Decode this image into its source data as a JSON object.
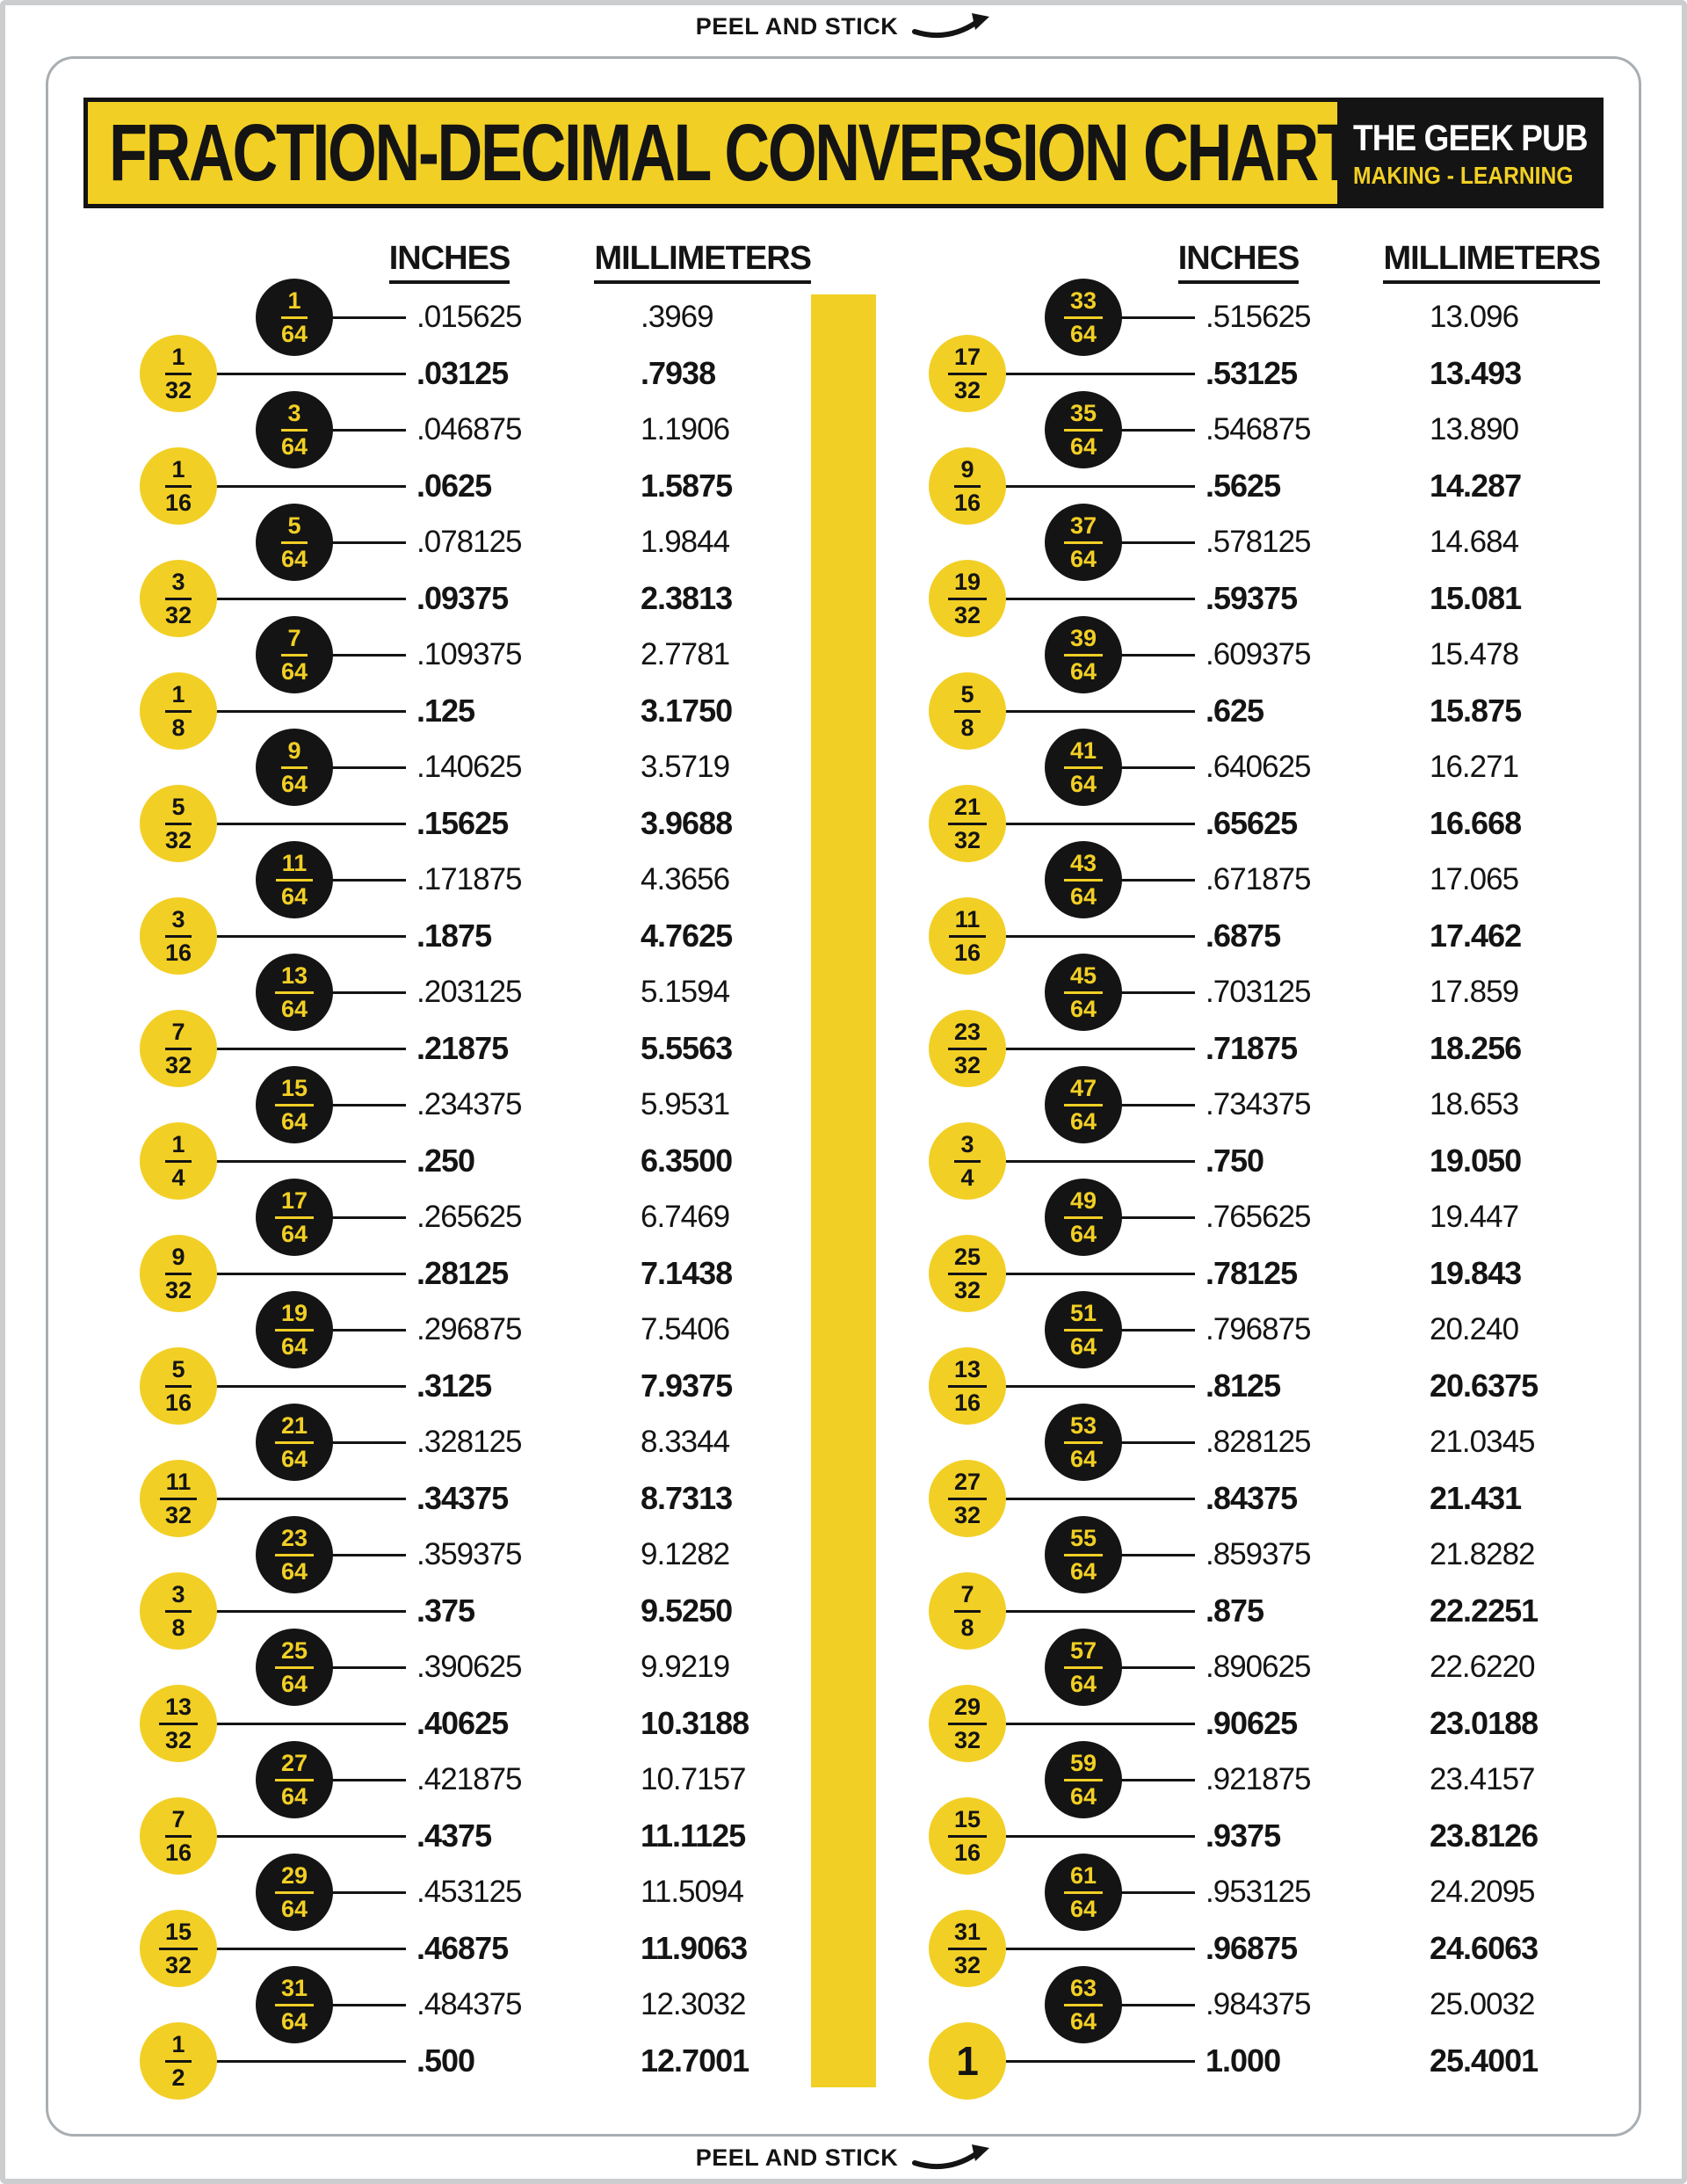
{
  "page": {
    "peel_top": "PEEL AND STICK",
    "peel_bottom": "PEEL AND STICK"
  },
  "icons": {
    "peel_arrow": "curved-arrow-up-right"
  },
  "colors": {
    "yellow": "#F2CF24",
    "black": "#141414",
    "white": "#FFFFFF"
  },
  "header": {
    "title": "FRACTION-DECIMAL CONVERSION CHART",
    "brand": "THE GEEK PUB",
    "brand_sub": "MAKING - LEARNING"
  },
  "columns": [
    {
      "inches_header": "INCHES",
      "mm_header": "MILLIMETERS",
      "rows": [
        {
          "style": "b",
          "num": "1",
          "den": "64",
          "inches": ".015625",
          "mm": ".3969"
        },
        {
          "style": "y",
          "num": "1",
          "den": "32",
          "inches": ".03125",
          "mm": ".7938"
        },
        {
          "style": "b",
          "num": "3",
          "den": "64",
          "inches": ".046875",
          "mm": "1.1906"
        },
        {
          "style": "y",
          "num": "1",
          "den": "16",
          "inches": ".0625",
          "mm": "1.5875"
        },
        {
          "style": "b",
          "num": "5",
          "den": "64",
          "inches": ".078125",
          "mm": "1.9844"
        },
        {
          "style": "y",
          "num": "3",
          "den": "32",
          "inches": ".09375",
          "mm": "2.3813"
        },
        {
          "style": "b",
          "num": "7",
          "den": "64",
          "inches": ".109375",
          "mm": "2.7781"
        },
        {
          "style": "y",
          "num": "1",
          "den": "8",
          "inches": ".125",
          "mm": "3.1750"
        },
        {
          "style": "b",
          "num": "9",
          "den": "64",
          "inches": ".140625",
          "mm": "3.5719"
        },
        {
          "style": "y",
          "num": "5",
          "den": "32",
          "inches": ".15625",
          "mm": "3.9688"
        },
        {
          "style": "b",
          "num": "11",
          "den": "64",
          "inches": ".171875",
          "mm": "4.3656"
        },
        {
          "style": "y",
          "num": "3",
          "den": "16",
          "inches": ".1875",
          "mm": "4.7625"
        },
        {
          "style": "b",
          "num": "13",
          "den": "64",
          "inches": ".203125",
          "mm": "5.1594"
        },
        {
          "style": "y",
          "num": "7",
          "den": "32",
          "inches": ".21875",
          "mm": "5.5563"
        },
        {
          "style": "b",
          "num": "15",
          "den": "64",
          "inches": ".234375",
          "mm": "5.9531"
        },
        {
          "style": "y",
          "num": "1",
          "den": "4",
          "inches": ".250",
          "mm": "6.3500"
        },
        {
          "style": "b",
          "num": "17",
          "den": "64",
          "inches": ".265625",
          "mm": "6.7469"
        },
        {
          "style": "y",
          "num": "9",
          "den": "32",
          "inches": ".28125",
          "mm": "7.1438"
        },
        {
          "style": "b",
          "num": "19",
          "den": "64",
          "inches": ".296875",
          "mm": "7.5406"
        },
        {
          "style": "y",
          "num": "5",
          "den": "16",
          "inches": ".3125",
          "mm": "7.9375"
        },
        {
          "style": "b",
          "num": "21",
          "den": "64",
          "inches": ".328125",
          "mm": "8.3344"
        },
        {
          "style": "y",
          "num": "11",
          "den": "32",
          "inches": ".34375",
          "mm": "8.7313"
        },
        {
          "style": "b",
          "num": "23",
          "den": "64",
          "inches": ".359375",
          "mm": "9.1282"
        },
        {
          "style": "y",
          "num": "3",
          "den": "8",
          "inches": ".375",
          "mm": "9.5250"
        },
        {
          "style": "b",
          "num": "25",
          "den": "64",
          "inches": ".390625",
          "mm": "9.9219"
        },
        {
          "style": "y",
          "num": "13",
          "den": "32",
          "inches": ".40625",
          "mm": "10.3188"
        },
        {
          "style": "b",
          "num": "27",
          "den": "64",
          "inches": ".421875",
          "mm": "10.7157"
        },
        {
          "style": "y",
          "num": "7",
          "den": "16",
          "inches": ".4375",
          "mm": "11.1125"
        },
        {
          "style": "b",
          "num": "29",
          "den": "64",
          "inches": ".453125",
          "mm": "11.5094"
        },
        {
          "style": "y",
          "num": "15",
          "den": "32",
          "inches": ".46875",
          "mm": "11.9063"
        },
        {
          "style": "b",
          "num": "31",
          "den": "64",
          "inches": ".484375",
          "mm": "12.3032"
        },
        {
          "style": "y",
          "num": "1",
          "den": "2",
          "inches": ".500",
          "mm": "12.7001"
        }
      ]
    },
    {
      "inches_header": "INCHES",
      "mm_header": "MILLIMETERS",
      "rows": [
        {
          "style": "b",
          "num": "33",
          "den": "64",
          "inches": ".515625",
          "mm": "13.096"
        },
        {
          "style": "y",
          "num": "17",
          "den": "32",
          "inches": ".53125",
          "mm": "13.493"
        },
        {
          "style": "b",
          "num": "35",
          "den": "64",
          "inches": ".546875",
          "mm": "13.890"
        },
        {
          "style": "y",
          "num": "9",
          "den": "16",
          "inches": ".5625",
          "mm": "14.287"
        },
        {
          "style": "b",
          "num": "37",
          "den": "64",
          "inches": ".578125",
          "mm": "14.684"
        },
        {
          "style": "y",
          "num": "19",
          "den": "32",
          "inches": ".59375",
          "mm": "15.081"
        },
        {
          "style": "b",
          "num": "39",
          "den": "64",
          "inches": ".609375",
          "mm": "15.478"
        },
        {
          "style": "y",
          "num": "5",
          "den": "8",
          "inches": ".625",
          "mm": "15.875"
        },
        {
          "style": "b",
          "num": "41",
          "den": "64",
          "inches": ".640625",
          "mm": "16.271"
        },
        {
          "style": "y",
          "num": "21",
          "den": "32",
          "inches": ".65625",
          "mm": "16.668"
        },
        {
          "style": "b",
          "num": "43",
          "den": "64",
          "inches": ".671875",
          "mm": "17.065"
        },
        {
          "style": "y",
          "num": "11",
          "den": "16",
          "inches": ".6875",
          "mm": "17.462"
        },
        {
          "style": "b",
          "num": "45",
          "den": "64",
          "inches": ".703125",
          "mm": "17.859"
        },
        {
          "style": "y",
          "num": "23",
          "den": "32",
          "inches": ".71875",
          "mm": "18.256"
        },
        {
          "style": "b",
          "num": "47",
          "den": "64",
          "inches": ".734375",
          "mm": "18.653"
        },
        {
          "style": "y",
          "num": "3",
          "den": "4",
          "inches": ".750",
          "mm": "19.050"
        },
        {
          "style": "b",
          "num": "49",
          "den": "64",
          "inches": ".765625",
          "mm": "19.447"
        },
        {
          "style": "y",
          "num": "25",
          "den": "32",
          "inches": ".78125",
          "mm": "19.843"
        },
        {
          "style": "b",
          "num": "51",
          "den": "64",
          "inches": ".796875",
          "mm": "20.240"
        },
        {
          "style": "y",
          "num": "13",
          "den": "16",
          "inches": ".8125",
          "mm": "20.6375"
        },
        {
          "style": "b",
          "num": "53",
          "den": "64",
          "inches": ".828125",
          "mm": "21.0345"
        },
        {
          "style": "y",
          "num": "27",
          "den": "32",
          "inches": ".84375",
          "mm": "21.431"
        },
        {
          "style": "b",
          "num": "55",
          "den": "64",
          "inches": ".859375",
          "mm": "21.8282"
        },
        {
          "style": "y",
          "num": "7",
          "den": "8",
          "inches": ".875",
          "mm": "22.2251"
        },
        {
          "style": "b",
          "num": "57",
          "den": "64",
          "inches": ".890625",
          "mm": "22.6220"
        },
        {
          "style": "y",
          "num": "29",
          "den": "32",
          "inches": ".90625",
          "mm": "23.0188"
        },
        {
          "style": "b",
          "num": "59",
          "den": "64",
          "inches": ".921875",
          "mm": "23.4157"
        },
        {
          "style": "y",
          "num": "15",
          "den": "16",
          "inches": ".9375",
          "mm": "23.8126"
        },
        {
          "style": "b",
          "num": "61",
          "den": "64",
          "inches": ".953125",
          "mm": "24.2095"
        },
        {
          "style": "y",
          "num": "31",
          "den": "32",
          "inches": ".96875",
          "mm": "24.6063"
        },
        {
          "style": "b",
          "num": "63",
          "den": "64",
          "inches": ".984375",
          "mm": "25.0032"
        },
        {
          "style": "w",
          "num": "1",
          "den": "",
          "inches": "1.000",
          "mm": "25.4001"
        }
      ]
    }
  ]
}
